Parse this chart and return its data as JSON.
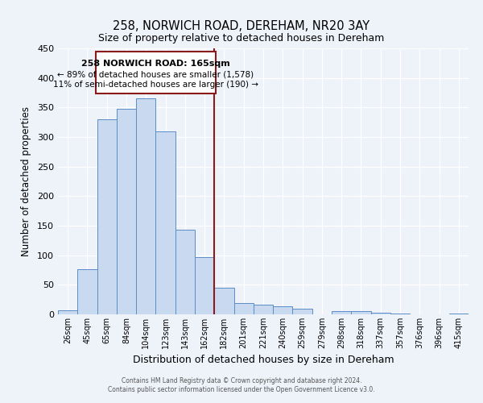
{
  "title": "258, NORWICH ROAD, DEREHAM, NR20 3AY",
  "subtitle": "Size of property relative to detached houses in Dereham",
  "xlabel": "Distribution of detached houses by size in Dereham",
  "ylabel": "Number of detached properties",
  "bar_labels": [
    "26sqm",
    "45sqm",
    "65sqm",
    "84sqm",
    "104sqm",
    "123sqm",
    "143sqm",
    "162sqm",
    "182sqm",
    "201sqm",
    "221sqm",
    "240sqm",
    "259sqm",
    "279sqm",
    "298sqm",
    "318sqm",
    "337sqm",
    "357sqm",
    "376sqm",
    "396sqm",
    "415sqm"
  ],
  "bar_heights": [
    7,
    76,
    330,
    348,
    365,
    310,
    143,
    97,
    45,
    19,
    16,
    13,
    10,
    0,
    5,
    5,
    3,
    1,
    0,
    0,
    1
  ],
  "bar_color": "#c9d9f0",
  "bar_edgecolor": "#5b8dc8",
  "vline_index": 7,
  "vline_color": "#8b1a1a",
  "annotation_box_title": "258 NORWICH ROAD: 165sqm",
  "annotation_line1": "← 89% of detached houses are smaller (1,578)",
  "annotation_line2": "11% of semi-detached houses are larger (190) →",
  "annotation_box_color": "#8b1a1a",
  "ylim": [
    0,
    450
  ],
  "yticks": [
    0,
    50,
    100,
    150,
    200,
    250,
    300,
    350,
    400,
    450
  ],
  "footer_line1": "Contains HM Land Registry data © Crown copyright and database right 2024.",
  "footer_line2": "Contains public sector information licensed under the Open Government Licence v3.0.",
  "bg_color": "#eef2f9",
  "grid_color": "#ffffff"
}
